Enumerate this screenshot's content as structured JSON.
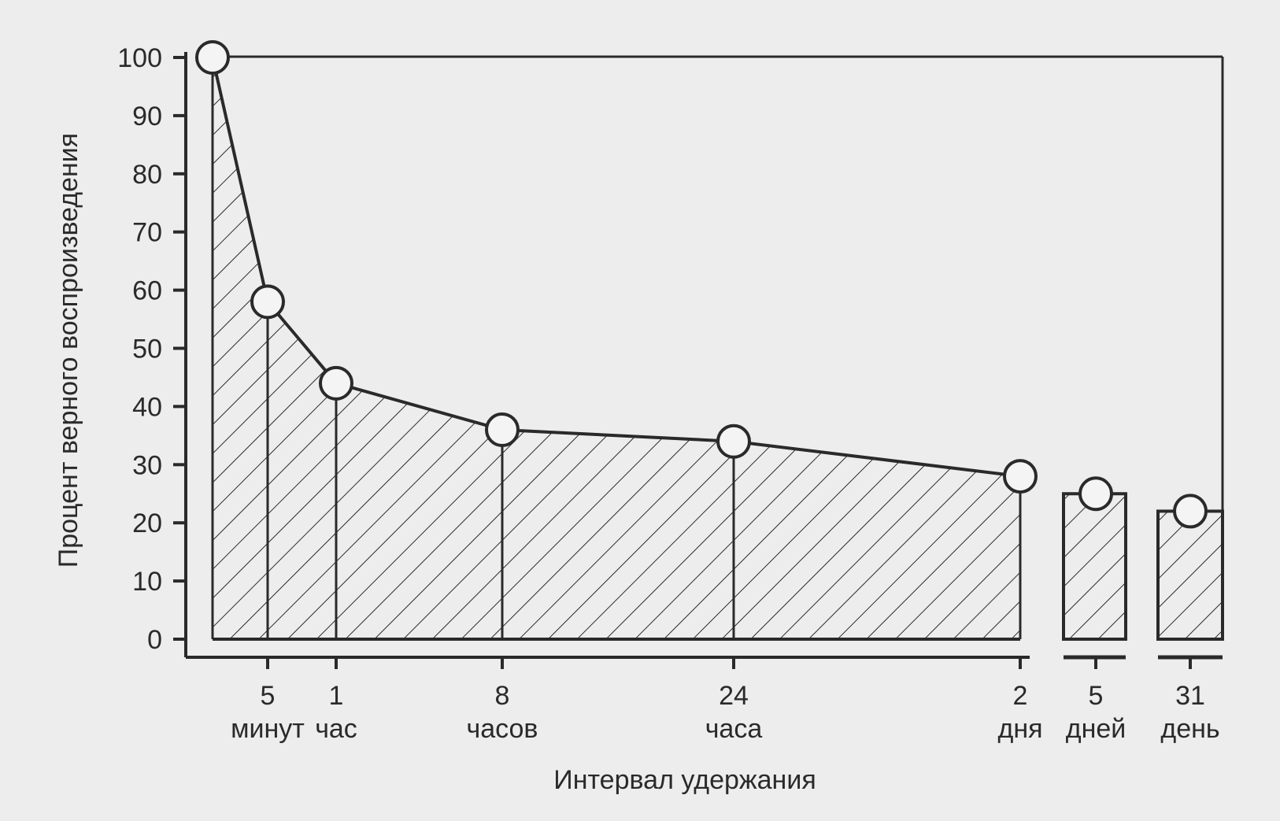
{
  "chart_data": {
    "type": "area",
    "title": "",
    "xlabel": "Интервал удержания",
    "ylabel": "Процент верного воспроизведения",
    "ylim": [
      0,
      100
    ],
    "yticks": [
      "0",
      "10",
      "20",
      "30",
      "40",
      "50",
      "60",
      "70",
      "80",
      "90",
      "100"
    ],
    "grid": false,
    "fill_pattern": "diagonal-hatch",
    "series": [
      {
        "values": [
          100,
          58,
          44,
          36,
          34,
          28,
          25,
          22
        ]
      }
    ],
    "x_categories": [
      {
        "number": "",
        "unit": ""
      },
      {
        "number": "5",
        "unit": "минут"
      },
      {
        "number": "1",
        "unit": "час"
      },
      {
        "number": "8",
        "unit": "часов"
      },
      {
        "number": "24",
        "unit": "часа"
      },
      {
        "number": "2",
        "unit": "дня"
      },
      {
        "number": "5",
        "unit": "дней"
      },
      {
        "number": "31",
        "unit": "день"
      }
    ],
    "colors": {
      "background": "#ededed",
      "ink": "#2a2a2a",
      "marker_fill": "#f4f4f4"
    }
  }
}
